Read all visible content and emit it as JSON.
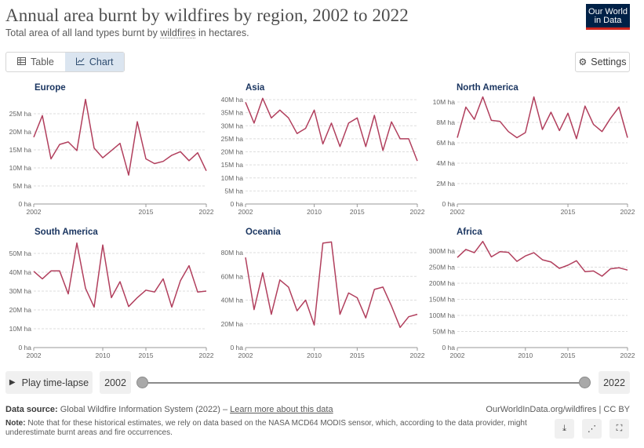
{
  "header": {
    "title": "Annual area burnt by wildfires by region, 2002 to 2022",
    "subtitle_before": "Total area of all land types burnt by ",
    "subtitle_link": "wildfires",
    "subtitle_after": " in hectares.",
    "logo_line1": "Our World",
    "logo_line2": "in Data"
  },
  "tabs": [
    {
      "label": "Table",
      "icon": "table-icon",
      "active": false
    },
    {
      "label": "Chart",
      "icon": "line-chart-icon",
      "active": true
    }
  ],
  "settings_label": "Settings",
  "controls": {
    "play_label": "Play time-lapse",
    "start_year": "2002",
    "end_year": "2022"
  },
  "footer": {
    "source_label": "Data source:",
    "source_text": "Global Wildfire Information System (2022) – ",
    "source_link": "Learn more about this data",
    "site": "OurWorldInData.org/wildfires | CC BY",
    "note_label": "Note:",
    "note_text": "Note that for these historical estimates, we rely on data based on the NASA MCD64 MODIS sensor, which, according to the data provider, might underestimate burnt areas and fire occurrences."
  },
  "colors": {
    "line": "#b13f5d",
    "title": "#1b3661",
    "grid": "#dddddd"
  },
  "chart_data": [
    {
      "type": "line",
      "title": "Europe",
      "x": [
        2002,
        2003,
        2004,
        2005,
        2006,
        2007,
        2008,
        2009,
        2010,
        2011,
        2012,
        2013,
        2014,
        2015,
        2016,
        2017,
        2018,
        2019,
        2020,
        2021,
        2022
      ],
      "series": [
        {
          "values": [
            18.5,
            24.5,
            12.5,
            16.5,
            17.2,
            14.8,
            29.0,
            15.5,
            12.8,
            14.8,
            16.8,
            8.0,
            22.8,
            12.5,
            11.2,
            11.8,
            13.5,
            14.5,
            12.0,
            14.2,
            9.2
          ]
        }
      ],
      "ylim": [
        0,
        25
      ],
      "yticks": [
        "0 ha",
        "5M ha",
        "10M ha",
        "15M ha",
        "20M ha",
        "25M ha"
      ],
      "xticks": [
        "2002",
        "2015",
        "2022"
      ]
    },
    {
      "type": "line",
      "title": "Asia",
      "x": [
        2002,
        2003,
        2004,
        2005,
        2006,
        2007,
        2008,
        2009,
        2010,
        2011,
        2012,
        2013,
        2014,
        2015,
        2016,
        2017,
        2018,
        2019,
        2020,
        2021,
        2022
      ],
      "series": [
        {
          "values": [
            39,
            31,
            40.5,
            33,
            36,
            33,
            27,
            29,
            36,
            23,
            31,
            22,
            31,
            33,
            22,
            34,
            20.5,
            31.5,
            25,
            25,
            16.5
          ]
        }
      ],
      "ylim": [
        0,
        40
      ],
      "yticks": [
        "0 ha",
        "5M ha",
        "10M ha",
        "15M ha",
        "20M ha",
        "25M ha",
        "30M ha",
        "35M ha",
        "40M ha"
      ],
      "xticks": [
        "2002",
        "2010",
        "2015",
        "2022"
      ]
    },
    {
      "type": "line",
      "title": "North America",
      "x": [
        2002,
        2003,
        2004,
        2005,
        2006,
        2007,
        2008,
        2009,
        2010,
        2011,
        2012,
        2013,
        2014,
        2015,
        2016,
        2017,
        2018,
        2019,
        2020,
        2021,
        2022
      ],
      "series": [
        {
          "values": [
            6.5,
            9.5,
            8.3,
            10.5,
            8.2,
            8.1,
            7.1,
            6.5,
            7.0,
            10.5,
            7.3,
            9.0,
            7.2,
            8.9,
            6.4,
            9.6,
            7.8,
            7.1,
            8.4,
            9.5,
            6.5
          ]
        }
      ],
      "ylim": [
        0,
        10
      ],
      "yticks": [
        "0 ha",
        "2M ha",
        "4M ha",
        "6M ha",
        "8M ha",
        "10M ha"
      ],
      "xticks": [
        "2002",
        "2015",
        "2022"
      ]
    },
    {
      "type": "line",
      "title": "South America",
      "x": [
        2002,
        2003,
        2004,
        2005,
        2006,
        2007,
        2008,
        2009,
        2010,
        2011,
        2012,
        2013,
        2014,
        2015,
        2016,
        2017,
        2018,
        2019,
        2020,
        2021,
        2022
      ],
      "series": [
        {
          "values": [
            40.5,
            36.5,
            40.7,
            40.7,
            28.5,
            55.5,
            31.5,
            21.5,
            54.5,
            26.5,
            35.0,
            21.8,
            26.5,
            30.5,
            29.5,
            36.5,
            21.5,
            35.5,
            43.5,
            29.5,
            30.0
          ]
        }
      ],
      "ylim": [
        0,
        50
      ],
      "yticks": [
        "0 ha",
        "10M ha",
        "20M ha",
        "30M ha",
        "40M ha",
        "50M ha"
      ],
      "xticks": [
        "2002",
        "2010",
        "2015",
        "2022"
      ]
    },
    {
      "type": "line",
      "title": "Oceania",
      "x": [
        2002,
        2003,
        2004,
        2005,
        2006,
        2007,
        2008,
        2009,
        2010,
        2011,
        2012,
        2013,
        2014,
        2015,
        2016,
        2017,
        2018,
        2019,
        2020,
        2021,
        2022
      ],
      "series": [
        {
          "values": [
            76,
            32,
            63,
            28,
            57,
            51,
            31,
            40,
            19,
            88,
            89,
            28,
            46,
            42,
            25,
            49,
            51,
            35,
            17,
            26,
            28
          ]
        }
      ],
      "ylim": [
        0,
        80
      ],
      "yticks": [
        "0 ha",
        "20M ha",
        "40M ha",
        "60M ha",
        "80M ha"
      ],
      "xticks": [
        "2002",
        "2010",
        "2015",
        "2022"
      ]
    },
    {
      "type": "line",
      "title": "Africa",
      "x": [
        2002,
        2003,
        2004,
        2005,
        2006,
        2007,
        2008,
        2009,
        2010,
        2011,
        2012,
        2013,
        2014,
        2015,
        2016,
        2017,
        2018,
        2019,
        2020,
        2021,
        2022
      ],
      "series": [
        {
          "values": [
            280,
            305,
            295,
            330,
            282,
            298,
            296,
            268,
            285,
            295,
            273,
            266,
            246,
            256,
            270,
            236,
            238,
            222,
            245,
            248,
            241
          ]
        }
      ],
      "ylim": [
        0,
        300
      ],
      "yticks": [
        "0 ha",
        "50M ha",
        "100M ha",
        "150M ha",
        "200M ha",
        "250M ha",
        "300M ha"
      ],
      "xticks": [
        "2002",
        "2010",
        "2015",
        "2022"
      ]
    }
  ]
}
